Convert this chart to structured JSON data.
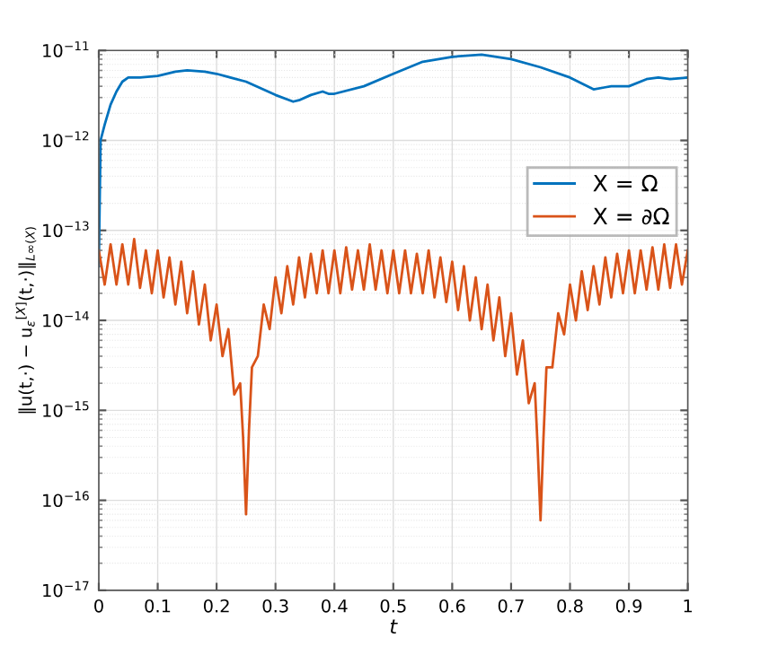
{
  "chart_data": {
    "type": "line",
    "xlabel": "t",
    "ylabel": "‖u(t,·) − u$_{ε}$$^{[X]}$(t,·)‖$_{L∞(X)}$",
    "log": "y",
    "grid": true,
    "legend": "right",
    "line_style": "solid",
    "marker": "none",
    "xlim": [
      0,
      1
    ],
    "xticks": [
      0,
      0.1,
      0.2,
      0.3,
      0.4,
      0.5,
      0.6,
      0.7,
      0.8,
      0.9,
      1
    ],
    "ylim": [
      1e-17,
      1e-11
    ],
    "yticks": [
      {
        "value": 1e-17,
        "label": "10$^{−17}$"
      },
      {
        "value": 1e-16,
        "label": "10$^{−16}$"
      },
      {
        "value": 1e-15,
        "label": "10$^{−15}$"
      },
      {
        "value": 1e-14,
        "label": "10$^{−14}$"
      },
      {
        "value": 1e-13,
        "label": "10$^{−13}$"
      },
      {
        "value": 1e-12,
        "label": "10$^{−12}$"
      },
      {
        "value": 1e-11,
        "label": "10$^{−11}$"
      }
    ],
    "series": [
      {
        "name": "X = Ω",
        "color": "#0072bd",
        "x": [
          0,
          0.003,
          0.01,
          0.02,
          0.03,
          0.04,
          0.05,
          0.07,
          0.1,
          0.13,
          0.15,
          0.18,
          0.2,
          0.25,
          0.3,
          0.33,
          0.34,
          0.36,
          0.38,
          0.39,
          0.4,
          0.45,
          0.5,
          0.55,
          0.6,
          0.65,
          0.7,
          0.75,
          0.8,
          0.84,
          0.86,
          0.87,
          0.9,
          0.93,
          0.95,
          0.97,
          1
        ],
        "values": [
          4e-14,
          1e-12,
          1.5e-12,
          2.5e-12,
          3.5e-12,
          4.5e-12,
          5e-12,
          5e-12,
          5.2e-12,
          5.8e-12,
          6e-12,
          5.8e-12,
          5.5e-12,
          4.5e-12,
          3.2e-12,
          2.7e-12,
          2.8e-12,
          3.2e-12,
          3.5e-12,
          3.3e-12,
          3.3e-12,
          4e-12,
          5.5e-12,
          7.5e-12,
          8.5e-12,
          9e-12,
          8e-12,
          6.5e-12,
          5e-12,
          3.7e-12,
          3.9e-12,
          4e-12,
          4e-12,
          4.8e-12,
          5e-12,
          4.8e-12,
          5e-12
        ]
      },
      {
        "name": "X = ∂Ω",
        "color": "#d95319",
        "x": [
          0,
          0.01,
          0.02,
          0.03,
          0.04,
          0.05,
          0.06,
          0.07,
          0.08,
          0.09,
          0.1,
          0.11,
          0.12,
          0.13,
          0.14,
          0.15,
          0.16,
          0.17,
          0.18,
          0.19,
          0.2,
          0.21,
          0.22,
          0.23,
          0.24,
          0.245,
          0.25,
          0.255,
          0.26,
          0.27,
          0.28,
          0.29,
          0.3,
          0.31,
          0.32,
          0.33,
          0.34,
          0.35,
          0.36,
          0.37,
          0.38,
          0.39,
          0.4,
          0.41,
          0.42,
          0.43,
          0.44,
          0.45,
          0.46,
          0.47,
          0.48,
          0.49,
          0.5,
          0.51,
          0.52,
          0.53,
          0.54,
          0.55,
          0.56,
          0.57,
          0.58,
          0.59,
          0.6,
          0.61,
          0.62,
          0.63,
          0.64,
          0.65,
          0.66,
          0.67,
          0.68,
          0.69,
          0.7,
          0.71,
          0.72,
          0.73,
          0.74,
          0.745,
          0.75,
          0.755,
          0.76,
          0.77,
          0.78,
          0.79,
          0.8,
          0.81,
          0.82,
          0.83,
          0.84,
          0.85,
          0.86,
          0.87,
          0.88,
          0.89,
          0.9,
          0.91,
          0.92,
          0.93,
          0.94,
          0.95,
          0.96,
          0.97,
          0.98,
          0.99,
          1
        ],
        "values": [
          6e-14,
          2.5e-14,
          7e-14,
          2.5e-14,
          7e-14,
          2.5e-14,
          8e-14,
          2.3e-14,
          6e-14,
          2e-14,
          6e-14,
          1.8e-14,
          5e-14,
          1.5e-14,
          4.5e-14,
          1.2e-14,
          3.5e-14,
          9e-15,
          2.5e-14,
          6e-15,
          1.5e-14,
          4e-15,
          8e-15,
          1.5e-15,
          2e-15,
          5e-16,
          7e-17,
          6e-16,
          3e-15,
          4e-15,
          1.5e-14,
          8e-15,
          3e-14,
          1.2e-14,
          4e-14,
          1.5e-14,
          5e-14,
          1.8e-14,
          5.5e-14,
          2e-14,
          6e-14,
          2e-14,
          6e-14,
          2e-14,
          6.5e-14,
          2.2e-14,
          6e-14,
          2.2e-14,
          7e-14,
          2.2e-14,
          6e-14,
          2e-14,
          6e-14,
          2e-14,
          6e-14,
          2e-14,
          5.5e-14,
          2e-14,
          6e-14,
          1.8e-14,
          5e-14,
          1.6e-14,
          4.5e-14,
          1.3e-14,
          4e-14,
          1e-14,
          3e-14,
          8e-15,
          2.5e-14,
          6e-15,
          1.8e-14,
          4e-15,
          1.2e-14,
          2.5e-15,
          6e-15,
          1.2e-15,
          2e-15,
          4e-16,
          6e-17,
          5e-16,
          3e-15,
          3e-15,
          1.2e-14,
          7e-15,
          2.5e-14,
          1e-14,
          3.5e-14,
          1.3e-14,
          4e-14,
          1.5e-14,
          5e-14,
          1.8e-14,
          5.5e-14,
          2e-14,
          6e-14,
          2e-14,
          6e-14,
          2.2e-14,
          6.5e-14,
          2.2e-14,
          7e-14,
          2.3e-14,
          7e-14,
          2.5e-14,
          6e-14
        ]
      }
    ]
  }
}
